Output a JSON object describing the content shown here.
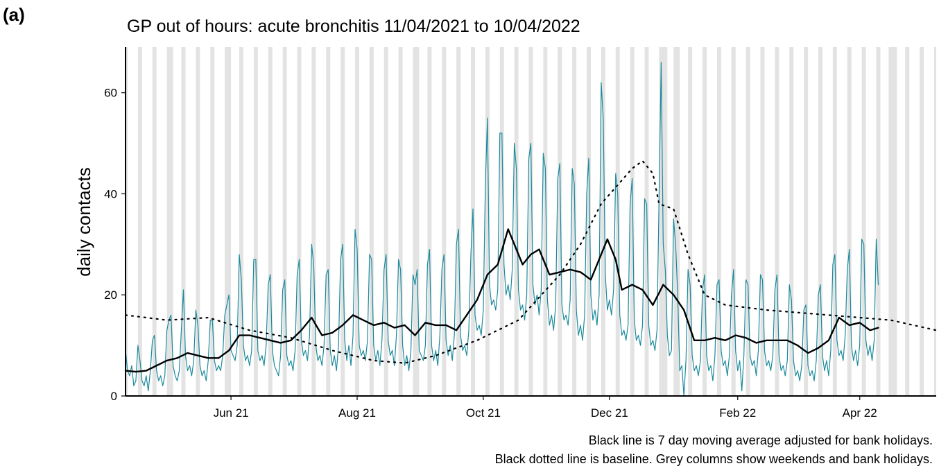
{
  "chart_data": {
    "type": "line",
    "panel_label": "(a)",
    "title": "GP out of hours: acute bronchitis 11/04/2021 to 10/04/2022",
    "y_label": "daily contacts",
    "notes": [
      "Black line is 7 day moving average adjusted for bank holidays.",
      "Black dotted line is baseline. Grey columns show weekends and bank holidays."
    ],
    "xlim": [
      0,
      392
    ],
    "xticks": [
      {
        "value": 51,
        "label": "Jun 21"
      },
      {
        "value": 112,
        "label": "Aug 21"
      },
      {
        "value": 173,
        "label": "Oct 21"
      },
      {
        "value": 234,
        "label": "Dec 21"
      },
      {
        "value": 296,
        "label": "Feb 22"
      },
      {
        "value": 355,
        "label": "Apr 22"
      }
    ],
    "ylim": [
      0,
      69
    ],
    "yticks": [
      0,
      20,
      40,
      60
    ],
    "shade_color": "#e3e3e3",
    "shaded": [
      [
        0,
        1
      ],
      [
        6,
        8
      ],
      [
        13,
        15
      ],
      [
        20,
        23
      ],
      [
        27,
        29
      ],
      [
        34,
        36
      ],
      [
        41,
        43
      ],
      [
        48,
        51
      ],
      [
        55,
        57
      ],
      [
        62,
        64
      ],
      [
        69,
        71
      ],
      [
        76,
        78
      ],
      [
        83,
        85
      ],
      [
        90,
        92
      ],
      [
        97,
        99
      ],
      [
        104,
        106
      ],
      [
        111,
        113
      ],
      [
        118,
        120
      ],
      [
        125,
        127
      ],
      [
        132,
        134
      ],
      [
        139,
        142
      ],
      [
        146,
        148
      ],
      [
        153,
        155
      ],
      [
        160,
        162
      ],
      [
        167,
        169
      ],
      [
        174,
        176
      ],
      [
        181,
        183
      ],
      [
        188,
        190
      ],
      [
        195,
        197
      ],
      [
        202,
        204
      ],
      [
        209,
        211
      ],
      [
        216,
        218
      ],
      [
        223,
        225
      ],
      [
        230,
        232
      ],
      [
        237,
        239
      ],
      [
        244,
        246
      ],
      [
        251,
        253
      ],
      [
        258,
        262
      ],
      [
        265,
        268
      ],
      [
        272,
        274
      ],
      [
        279,
        281
      ],
      [
        286,
        288
      ],
      [
        293,
        295
      ],
      [
        300,
        302
      ],
      [
        307,
        309
      ],
      [
        314,
        316
      ],
      [
        321,
        323
      ],
      [
        328,
        330
      ],
      [
        335,
        337
      ],
      [
        342,
        344
      ],
      [
        349,
        351
      ],
      [
        356,
        358
      ],
      [
        363,
        365
      ],
      [
        369,
        373
      ],
      [
        377,
        379
      ],
      [
        384,
        386
      ],
      [
        391,
        392
      ]
    ],
    "series": [
      {
        "color": "#1b8a9c",
        "width": 1.2,
        "dash": "none",
        "x": [
          0,
          1,
          2,
          3,
          4,
          5,
          6,
          7,
          8,
          9,
          10,
          11,
          12,
          13,
          14,
          15,
          16,
          17,
          18,
          19,
          20,
          21,
          22,
          23,
          24,
          25,
          26,
          27,
          28,
          29,
          30,
          31,
          32,
          33,
          34,
          35,
          36,
          37,
          38,
          39,
          40,
          41,
          42,
          43,
          44,
          45,
          46,
          47,
          48,
          49,
          50,
          51,
          52,
          53,
          54,
          55,
          56,
          57,
          58,
          59,
          60,
          61,
          62,
          63,
          64,
          65,
          66,
          67,
          68,
          69,
          70,
          71,
          72,
          73,
          74,
          75,
          76,
          77,
          78,
          79,
          80,
          81,
          82,
          83,
          84,
          85,
          86,
          87,
          88,
          89,
          90,
          91,
          92,
          93,
          94,
          95,
          96,
          97,
          98,
          99,
          100,
          101,
          102,
          103,
          104,
          105,
          106,
          107,
          108,
          109,
          110,
          111,
          112,
          113,
          114,
          115,
          116,
          117,
          118,
          119,
          120,
          121,
          122,
          123,
          124,
          125,
          126,
          127,
          128,
          129,
          130,
          131,
          132,
          133,
          134,
          135,
          136,
          137,
          138,
          139,
          140,
          141,
          142,
          143,
          144,
          145,
          146,
          147,
          148,
          149,
          150,
          151,
          152,
          153,
          154,
          155,
          156,
          157,
          158,
          159,
          160,
          161,
          162,
          163,
          164,
          165,
          166,
          167,
          168,
          169,
          170,
          171,
          172,
          173,
          174,
          175,
          176,
          177,
          178,
          179,
          180,
          181,
          182,
          183,
          184,
          185,
          186,
          187,
          188,
          189,
          190,
          191,
          192,
          193,
          194,
          195,
          196,
          197,
          198,
          199,
          200,
          201,
          202,
          203,
          204,
          205,
          206,
          207,
          208,
          209,
          210,
          211,
          212,
          213,
          214,
          215,
          216,
          217,
          218,
          219,
          220,
          221,
          222,
          223,
          224,
          225,
          226,
          227,
          228,
          229,
          230,
          231,
          232,
          233,
          234,
          235,
          236,
          237,
          238,
          239,
          240,
          241,
          242,
          243,
          244,
          245,
          246,
          247,
          248,
          249,
          250,
          251,
          252,
          253,
          254,
          255,
          256,
          257,
          258,
          259,
          260,
          261,
          262,
          263,
          264,
          265,
          266,
          267,
          268,
          269,
          270,
          271,
          272,
          273,
          274,
          275,
          276,
          277,
          278,
          279,
          280,
          281,
          282,
          283,
          284,
          285,
          286,
          287,
          288,
          289,
          290,
          291,
          292,
          293,
          294,
          295,
          296,
          297,
          298,
          299,
          300,
          301,
          302,
          303,
          304,
          305,
          306,
          307,
          308,
          309,
          310,
          311,
          312,
          313,
          314,
          315,
          316,
          317,
          318,
          319,
          320,
          321,
          322,
          323,
          324,
          325,
          326,
          327,
          328,
          329,
          330,
          331,
          332,
          333,
          334,
          335,
          336,
          337,
          338,
          339,
          340,
          341,
          342,
          343,
          344,
          345,
          346,
          347,
          348,
          349,
          350,
          351,
          352,
          353,
          354,
          355,
          356,
          357,
          358,
          359,
          360,
          361,
          362,
          363,
          364
        ],
        "values": [
          9,
          5,
          4,
          6,
          2,
          3,
          10,
          7,
          3,
          2,
          4,
          1,
          5,
          11,
          12,
          5,
          3,
          4,
          2,
          4,
          13,
          15,
          16,
          6,
          4,
          3,
          5,
          13,
          21,
          8,
          5,
          6,
          4,
          7,
          17,
          14,
          6,
          4,
          5,
          3,
          7,
          15,
          15,
          7,
          5,
          6,
          5,
          8,
          16,
          18,
          20,
          9,
          8,
          7,
          10,
          28,
          23,
          10,
          7,
          8,
          6,
          9,
          27,
          27,
          9,
          7,
          8,
          6,
          10,
          22,
          24,
          9,
          6,
          5,
          4,
          8,
          21,
          23,
          8,
          6,
          7,
          5,
          9,
          24,
          27,
          11,
          8,
          9,
          7,
          12,
          30,
          26,
          10,
          7,
          8,
          6,
          10,
          24,
          25,
          9,
          6,
          8,
          5,
          10,
          27,
          30,
          11,
          7,
          10,
          6,
          12,
          33,
          29,
          10,
          8,
          9,
          7,
          11,
          28,
          27,
          10,
          7,
          9,
          6,
          11,
          25,
          28,
          11,
          8,
          9,
          6,
          12,
          27,
          25,
          10,
          6,
          8,
          5,
          9,
          24,
          22,
          25,
          9,
          8,
          7,
          10,
          26,
          29,
          10,
          7,
          9,
          6,
          12,
          25,
          28,
          11,
          8,
          10,
          7,
          12,
          30,
          33,
          12,
          9,
          10,
          8,
          13,
          28,
          37,
          16,
          13,
          14,
          12,
          17,
          42,
          55,
          22,
          18,
          19,
          17,
          21,
          52,
          52,
          26,
          20,
          22,
          19,
          25,
          50,
          45,
          21,
          17,
          18,
          15,
          20,
          47,
          50,
          22,
          18,
          20,
          16,
          21,
          48,
          45,
          19,
          14,
          16,
          13,
          18,
          43,
          46,
          18,
          15,
          16,
          14,
          19,
          45,
          42,
          17,
          12,
          14,
          11,
          16,
          40,
          47,
          20,
          15,
          17,
          14,
          20,
          62,
          55,
          24,
          17,
          19,
          16,
          21,
          44,
          40,
          16,
          12,
          13,
          11,
          14,
          38,
          43,
          15,
          11,
          12,
          10,
          14,
          39,
          38,
          14,
          10,
          11,
          9,
          13,
          40,
          66,
          30,
          25,
          12,
          8,
          9,
          35,
          30,
          20,
          5,
          6,
          0,
          7,
          25,
          22,
          8,
          5,
          6,
          4,
          7,
          21,
          24,
          8,
          5,
          6,
          3,
          8,
          22,
          23,
          9,
          6,
          7,
          4,
          8,
          20,
          25,
          9,
          5,
          7,
          1,
          8,
          23,
          22,
          8,
          6,
          7,
          4,
          9,
          24,
          23,
          9,
          6,
          7,
          5,
          8,
          21,
          24,
          8,
          5,
          6,
          4,
          7,
          22,
          19,
          7,
          4,
          5,
          3,
          6,
          17,
          18,
          6,
          4,
          5,
          3,
          7,
          20,
          22,
          8,
          5,
          7,
          4,
          9,
          26,
          28,
          11,
          8,
          9,
          7,
          12,
          25,
          29,
          10,
          7,
          9,
          6,
          10,
          31,
          30,
          11,
          8,
          10,
          7,
          11,
          31,
          22
        ]
      },
      {
        "color": "#000000",
        "width": 2.4,
        "dash": "none",
        "x": [
          0,
          5,
          10,
          15,
          20,
          25,
          30,
          35,
          40,
          45,
          50,
          55,
          60,
          65,
          70,
          75,
          80,
          85,
          90,
          95,
          100,
          105,
          110,
          115,
          120,
          125,
          130,
          135,
          140,
          145,
          150,
          155,
          160,
          165,
          170,
          175,
          180,
          185,
          190,
          192,
          196,
          200,
          205,
          210,
          215,
          220,
          225,
          230,
          233,
          237,
          240,
          245,
          250,
          255,
          260,
          265,
          270,
          275,
          280,
          285,
          290,
          295,
          300,
          305,
          310,
          315,
          320,
          325,
          330,
          335,
          340,
          345,
          350,
          355,
          360,
          364
        ],
        "values": [
          5,
          4.8,
          5,
          6,
          7,
          7.5,
          8.5,
          8,
          7.5,
          7.5,
          9,
          12,
          12,
          11.5,
          11,
          10.5,
          11,
          13,
          15.5,
          12,
          12.5,
          14,
          16,
          15,
          14,
          14.5,
          13.5,
          14,
          12,
          14.5,
          14,
          14,
          13,
          16,
          19,
          24,
          26,
          33,
          28,
          26,
          28,
          29,
          24,
          24.5,
          25,
          24.5,
          23,
          28,
          31,
          27,
          21,
          22,
          21,
          18,
          22,
          20,
          17,
          11,
          11,
          11.5,
          11,
          12,
          11.5,
          10.5,
          11,
          11,
          11,
          10,
          8.5,
          9.5,
          11,
          15.5,
          14,
          14.5,
          13,
          13.5
        ]
      },
      {
        "color": "#000000",
        "width": 2.2,
        "dash": "2 7",
        "x": [
          0,
          20,
          40,
          60,
          80,
          100,
          120,
          135,
          150,
          170,
          190,
          210,
          220,
          230,
          245,
          250,
          255,
          258,
          265,
          272,
          280,
          290,
          310,
          340,
          370,
          392
        ],
        "values": [
          16,
          15,
          15.5,
          13,
          11.5,
          9,
          7,
          6.5,
          8,
          11,
          15,
          24,
          30,
          38,
          45,
          46.5,
          44,
          38,
          37,
          28,
          20,
          18,
          17,
          16,
          15,
          13
        ]
      }
    ]
  }
}
